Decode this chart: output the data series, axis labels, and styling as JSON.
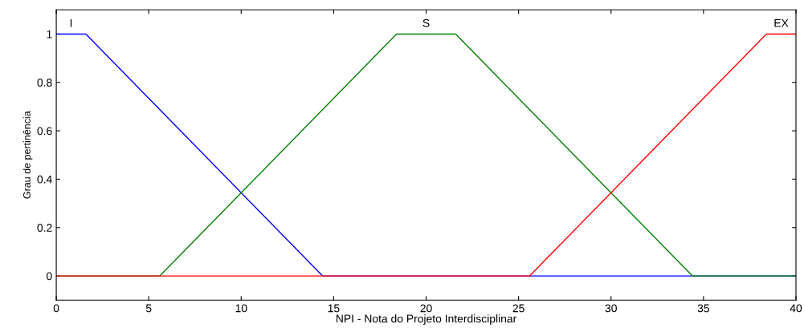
{
  "chart_data": {
    "type": "line",
    "xlabel": "NPI - Nota do Projeto Interdisciplinar",
    "ylabel": "Grau de pertinência",
    "series": [
      {
        "name": "I",
        "color": "#0000ff",
        "x": [
          0,
          1.6,
          14.4,
          40
        ],
        "values": [
          1,
          1,
          0,
          0
        ]
      },
      {
        "name": "S",
        "color": "#008000",
        "x": [
          0,
          5.6,
          18.4,
          21.6,
          34.4,
          40
        ],
        "values": [
          0,
          0,
          1,
          1,
          0,
          0
        ]
      },
      {
        "name": "EX",
        "color": "#ff0000",
        "x": [
          0,
          25.6,
          38.4,
          40
        ],
        "values": [
          0,
          0,
          1,
          1
        ]
      }
    ],
    "xlim": [
      0,
      40
    ],
    "ylim": [
      -0.1,
      1.1
    ],
    "xticks": [
      0,
      5,
      10,
      15,
      20,
      25,
      30,
      35,
      40
    ],
    "yticks": [
      0,
      0.2,
      0.4,
      0.6,
      0.8,
      1
    ],
    "grid": false,
    "legend": false,
    "marker": "none",
    "line_style": "solid"
  }
}
